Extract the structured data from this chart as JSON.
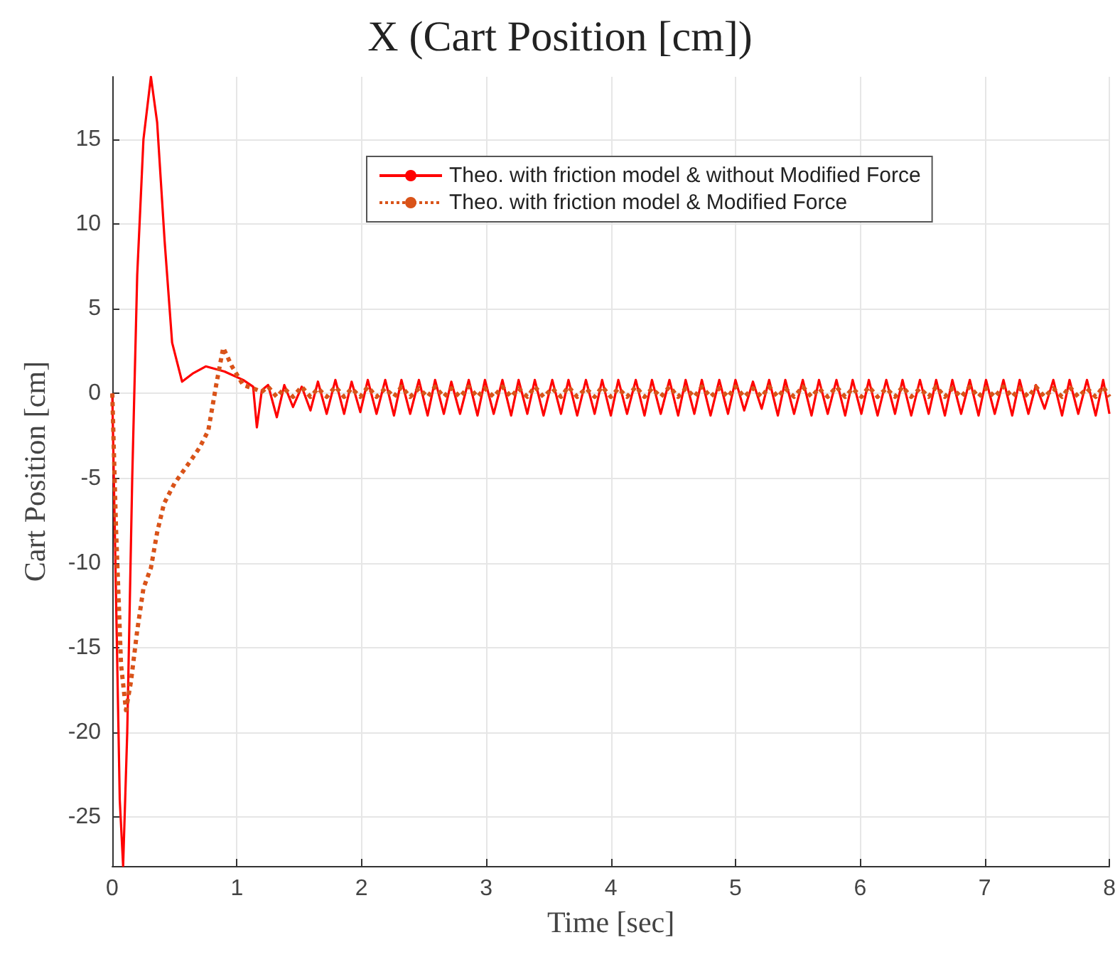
{
  "chart_data": {
    "type": "line",
    "title": "X (Cart Position [cm])",
    "xlabel": "Time [sec]",
    "ylabel": "Cart Position [cm]",
    "xlim": [
      0,
      8
    ],
    "xticks": [
      0,
      1,
      2,
      3,
      4,
      5,
      6,
      7,
      8
    ],
    "ylim": [
      -27.9,
      18.7
    ],
    "yticks": [
      -25,
      -20,
      -15,
      -10,
      -5,
      0,
      5,
      10,
      15
    ],
    "grid": true,
    "legend": "top right",
    "marker": "none",
    "series": [
      {
        "name": "Theo. with friction model & without Modified Force",
        "color": "#ff0000",
        "line_style": "solid",
        "x": [
          0,
          0.03,
          0.06,
          0.087,
          0.12,
          0.16,
          0.2,
          0.25,
          0.31,
          0.36,
          0.42,
          0.48,
          0.56,
          0.65,
          0.75,
          0.9,
          1.05,
          1.13,
          1.16,
          1.2,
          1.25,
          1.32,
          1.38,
          1.45,
          1.52,
          1.59,
          1.65,
          1.72,
          1.79,
          1.86,
          1.92,
          1.99,
          2.05,
          2.12,
          2.19,
          2.26,
          2.32,
          2.39,
          2.46,
          2.53,
          2.59,
          2.66,
          2.72,
          2.79,
          2.86,
          2.93,
          2.99,
          3.06,
          3.13,
          3.2,
          3.26,
          3.33,
          3.39,
          3.46,
          3.53,
          3.6,
          3.66,
          3.73,
          3.8,
          3.87,
          3.93,
          4.0,
          4.06,
          4.13,
          4.2,
          4.27,
          4.33,
          4.4,
          4.47,
          4.54,
          4.6,
          4.67,
          4.73,
          4.8,
          4.87,
          4.94,
          5.0,
          5.07,
          5.14,
          5.21,
          5.27,
          5.34,
          5.4,
          5.47,
          5.54,
          5.61,
          5.67,
          5.74,
          5.81,
          5.88,
          5.94,
          6.01,
          6.07,
          6.14,
          6.21,
          6.28,
          6.34,
          6.41,
          6.48,
          6.55,
          6.61,
          6.68,
          6.74,
          6.81,
          6.88,
          6.95,
          7.01,
          7.08,
          7.15,
          7.22,
          7.28,
          7.35,
          7.41,
          7.48,
          7.55,
          7.62,
          7.68,
          7.75,
          7.82,
          7.89,
          7.95,
          8.0
        ],
        "values": [
          0,
          -12,
          -24,
          -27.9,
          -20,
          -5,
          7,
          15,
          18.7,
          16,
          9,
          3,
          0.7,
          1.2,
          1.6,
          1.3,
          0.8,
          0.4,
          -2.0,
          0.2,
          0.5,
          -1.4,
          0.5,
          -0.8,
          0.4,
          -1.0,
          0.7,
          -1.2,
          0.8,
          -1.2,
          0.7,
          -1.1,
          0.8,
          -1.2,
          0.8,
          -1.3,
          0.8,
          -1.2,
          0.8,
          -1.3,
          0.8,
          -1.2,
          0.7,
          -1.2,
          0.8,
          -1.3,
          0.8,
          -1.2,
          0.8,
          -1.3,
          0.8,
          -1.2,
          0.8,
          -1.3,
          0.8,
          -1.2,
          0.8,
          -1.3,
          0.8,
          -1.2,
          0.8,
          -1.3,
          0.8,
          -1.2,
          0.8,
          -1.3,
          0.8,
          -1.2,
          0.8,
          -1.3,
          0.8,
          -1.2,
          0.8,
          -1.3,
          0.8,
          -1.2,
          0.8,
          -1.0,
          0.7,
          -0.9,
          0.8,
          -1.3,
          0.8,
          -1.2,
          0.8,
          -1.3,
          0.8,
          -1.2,
          0.8,
          -1.3,
          0.8,
          -1.2,
          0.8,
          -1.3,
          0.8,
          -1.2,
          0.8,
          -1.3,
          0.8,
          -1.2,
          0.8,
          -1.3,
          0.8,
          -1.2,
          0.8,
          -1.3,
          0.8,
          -1.2,
          0.8,
          -1.3,
          0.8,
          -1.2,
          0.5,
          -0.9,
          0.8,
          -1.3,
          0.8,
          -1.2,
          0.8,
          -1.3,
          0.8,
          -1.2
        ]
      },
      {
        "name": "Theo. with friction model & Modified Force",
        "color": "#d95319",
        "line_style": "dotted",
        "x": [
          0,
          0.03,
          0.07,
          0.11,
          0.15,
          0.2,
          0.25,
          0.31,
          0.36,
          0.415,
          0.5,
          0.626,
          0.7,
          0.77,
          0.836,
          0.89,
          0.96,
          1.05,
          1.13,
          1.2,
          1.25,
          1.32,
          1.38,
          1.45,
          1.52,
          1.59,
          1.65,
          1.72,
          1.79,
          1.86,
          1.92,
          1.99,
          2.05,
          2.12,
          2.19,
          2.26,
          2.32,
          2.39,
          2.46,
          2.53,
          2.59,
          2.66,
          2.72,
          2.79,
          2.86,
          2.93,
          2.99,
          3.06,
          3.13,
          3.2,
          3.26,
          3.33,
          3.39,
          3.46,
          3.53,
          3.6,
          3.66,
          3.73,
          3.8,
          3.87,
          3.93,
          4.0,
          4.06,
          4.13,
          4.2,
          4.27,
          4.33,
          4.4,
          4.47,
          4.54,
          4.6,
          4.67,
          4.73,
          4.8,
          4.87,
          4.94,
          5.0,
          5.07,
          5.14,
          5.21,
          5.27,
          5.34,
          5.4,
          5.47,
          5.54,
          5.61,
          5.67,
          5.74,
          5.81,
          5.88,
          5.94,
          6.01,
          6.07,
          6.14,
          6.21,
          6.28,
          6.34,
          6.41,
          6.48,
          6.55,
          6.61,
          6.68,
          6.74,
          6.81,
          6.88,
          6.95,
          7.01,
          7.08,
          7.15,
          7.22,
          7.28,
          7.35,
          7.41,
          7.48,
          7.55,
          7.62,
          7.68,
          7.75,
          7.82,
          7.89,
          7.95,
          8.0
        ],
        "values": [
          0,
          -8,
          -16,
          -18.7,
          -17,
          -14,
          -11.5,
          -10.3,
          -8.2,
          -6.5,
          -5.3,
          -4.0,
          -3.2,
          -2.2,
          0.6,
          2.7,
          1.6,
          0.5,
          0.3,
          0.1,
          0.4,
          -0.2,
          0.3,
          -0.2,
          0.4,
          -0.2,
          0.3,
          -0.2,
          0.4,
          -0.2,
          0.3,
          -0.2,
          0.4,
          -0.2,
          0.3,
          -0.2,
          0.4,
          -0.2,
          0.3,
          -0.2,
          0.4,
          -0.2,
          0.3,
          -0.2,
          0.4,
          -0.2,
          0.3,
          -0.2,
          0.4,
          -0.2,
          0.3,
          -0.2,
          0.4,
          -0.2,
          0.3,
          -0.2,
          0.4,
          -0.2,
          0.3,
          -0.2,
          0.4,
          -0.2,
          0.3,
          -0.2,
          0.4,
          -0.2,
          0.3,
          -0.2,
          0.4,
          -0.2,
          0.3,
          -0.2,
          0.4,
          -0.2,
          0.3,
          -0.2,
          0.4,
          -0.2,
          0.3,
          -0.2,
          0.4,
          -0.2,
          0.3,
          -0.2,
          0.4,
          -0.2,
          0.3,
          -0.2,
          0.4,
          -0.2,
          0.3,
          -0.2,
          0.4,
          -0.2,
          0.3,
          -0.2,
          0.4,
          -0.2,
          0.3,
          -0.2,
          0.4,
          -0.2,
          0.3,
          -0.2,
          0.4,
          -0.2,
          0.3,
          -0.2,
          0.4,
          -0.2,
          0.3,
          -0.2,
          0.4,
          -0.2,
          0.3,
          -0.2,
          0.4,
          -0.2,
          0.3,
          -0.2,
          0.4,
          -0.2
        ]
      }
    ]
  }
}
